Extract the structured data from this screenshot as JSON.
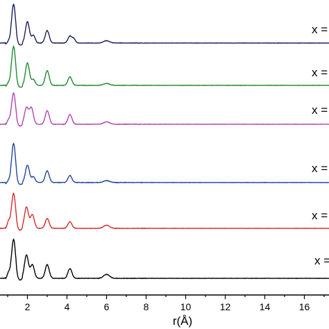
{
  "chart_data": {
    "type": "line",
    "title": "",
    "xlabel": "r(Å)",
    "ylabel": "",
    "xlim": [
      0,
      17.5
    ],
    "x_ticks": [
      2,
      4,
      6,
      8,
      10,
      12,
      14,
      16
    ],
    "x_tick_labels": [
      "2",
      "4",
      "6",
      "8",
      "10",
      "12",
      "14",
      "16"
    ],
    "grid": false,
    "legend_placement": "inline-right",
    "series": [
      {
        "name": "x =",
        "color": "#1c1c5c",
        "peaks": [
          [
            1.05,
            0.08,
            0.08
          ],
          [
            1.3,
            1.0,
            0.1
          ],
          [
            2.0,
            0.55,
            0.1
          ],
          [
            2.3,
            0.2,
            0.09
          ],
          [
            3.0,
            0.32,
            0.1
          ],
          [
            4.15,
            0.18,
            0.1
          ],
          [
            4.35,
            0.1,
            0.08
          ],
          [
            6.0,
            0.06,
            0.15
          ]
        ]
      },
      {
        "name": "x =",
        "color": "#1e8a32",
        "peaks": [
          [
            1.05,
            0.1,
            0.08
          ],
          [
            1.3,
            1.0,
            0.1
          ],
          [
            2.0,
            0.58,
            0.1
          ],
          [
            2.3,
            0.15,
            0.09
          ],
          [
            3.0,
            0.38,
            0.1
          ],
          [
            4.15,
            0.22,
            0.1
          ],
          [
            6.0,
            0.05,
            0.15
          ]
        ]
      },
      {
        "name": "x =",
        "color": "#b044b0",
        "peaks": [
          [
            1.05,
            0.15,
            0.08
          ],
          [
            1.3,
            0.8,
            0.1
          ],
          [
            1.95,
            0.42,
            0.1
          ],
          [
            2.2,
            0.42,
            0.1
          ],
          [
            3.0,
            0.35,
            0.1
          ],
          [
            4.15,
            0.25,
            0.1
          ],
          [
            6.0,
            0.06,
            0.15
          ]
        ]
      },
      {
        "name": "x =",
        "color": "#22449a",
        "peaks": [
          [
            1.05,
            0.08,
            0.08
          ],
          [
            1.3,
            1.0,
            0.1
          ],
          [
            2.0,
            0.45,
            0.1
          ],
          [
            2.3,
            0.15,
            0.09
          ],
          [
            3.0,
            0.3,
            0.1
          ],
          [
            4.15,
            0.18,
            0.1
          ],
          [
            6.0,
            0.05,
            0.15
          ]
        ]
      },
      {
        "name": "x =",
        "color": "#d62b2b",
        "peaks": [
          [
            1.05,
            0.22,
            0.08
          ],
          [
            1.3,
            0.9,
            0.1
          ],
          [
            1.95,
            0.55,
            0.1
          ],
          [
            2.25,
            0.35,
            0.1
          ],
          [
            3.0,
            0.25,
            0.1
          ],
          [
            4.15,
            0.17,
            0.1
          ],
          [
            6.0,
            0.08,
            0.15
          ]
        ]
      },
      {
        "name": "x =",
        "color": "#000000",
        "peaks": [
          [
            1.05,
            0.18,
            0.08
          ],
          [
            1.3,
            1.0,
            0.1
          ],
          [
            1.95,
            0.6,
            0.1
          ],
          [
            2.25,
            0.35,
            0.1
          ],
          [
            3.0,
            0.35,
            0.1
          ],
          [
            4.15,
            0.25,
            0.1
          ],
          [
            6.0,
            0.1,
            0.15
          ]
        ]
      }
    ]
  }
}
